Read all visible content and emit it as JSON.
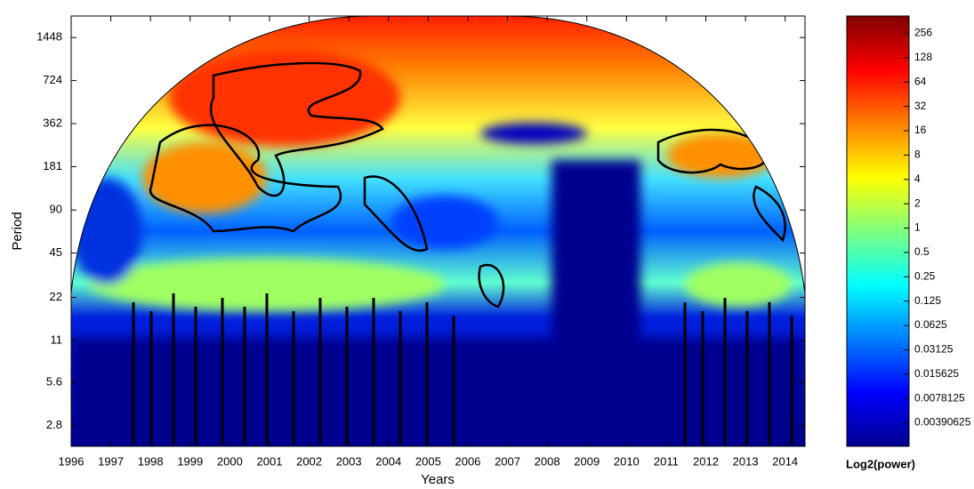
{
  "chart_data": {
    "type": "heatmap",
    "xlabel": "Years",
    "ylabel": "Period",
    "colorbar_label": "Log2(power)",
    "xlim": [
      1996,
      2014.5
    ],
    "xticks": [
      1996,
      1997,
      1998,
      1999,
      2000,
      2001,
      2002,
      2003,
      2004,
      2005,
      2006,
      2007,
      2008,
      2009,
      2010,
      2011,
      2012,
      2013,
      2014
    ],
    "ylim": [
      2,
      2048
    ],
    "y_scale": "log",
    "yticks": [
      2.8,
      5.6,
      11,
      22,
      45,
      90,
      181,
      362,
      724,
      1448
    ],
    "clim": [
      0.002,
      420
    ],
    "c_scale": "log",
    "cticks": [
      256,
      128,
      64,
      32,
      16,
      8,
      4,
      2,
      1,
      0.5,
      0.25,
      0.125,
      0.0625,
      0.03125,
      0.015625,
      0.0078125,
      0.00390625
    ],
    "colormap": [
      "#00008f",
      "#0000ff",
      "#0080ff",
      "#00ffff",
      "#80ff80",
      "#ffff00",
      "#ff8000",
      "#ff0000",
      "#800000"
    ]
  }
}
